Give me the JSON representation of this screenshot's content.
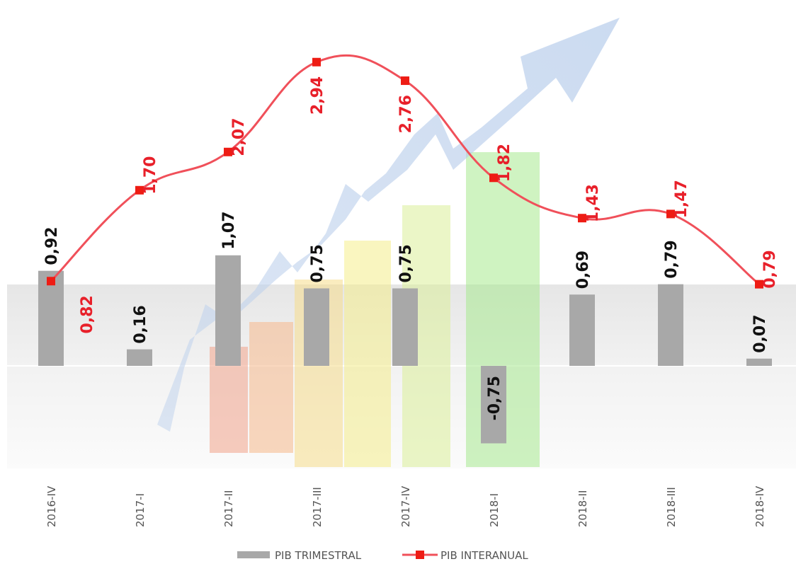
{
  "chart_data": {
    "type": "bar",
    "categories": [
      "2016-IV",
      "2017-I",
      "2017-II",
      "2017-III",
      "2017-IV",
      "2018-I",
      "2018-II",
      "2018-III",
      "2018-IV"
    ],
    "series": [
      {
        "name": "PIB TRIMESTRAL",
        "type": "bar",
        "values": [
          0.92,
          0.16,
          1.07,
          0.75,
          0.75,
          -0.75,
          0.69,
          0.79,
          0.07
        ],
        "labels": [
          "0,92",
          "0,16",
          "1,07",
          "0,75",
          "0,75",
          "-0,75",
          "0,69",
          "0,79",
          "0,07"
        ],
        "color": "#a8a8a8"
      },
      {
        "name": "PIB INTERANUAL",
        "type": "line",
        "values": [
          0.82,
          1.7,
          2.07,
          2.94,
          2.76,
          1.82,
          1.43,
          1.47,
          0.79
        ],
        "labels": [
          "0,82",
          "1,70",
          "2,07",
          "2,94",
          "2,76",
          "1,82",
          "1,43",
          "1,47",
          "0,79"
        ],
        "color": "#f0505a",
        "marker_color": "#ee1c14"
      }
    ],
    "legend": [
      "PIB TRIMESTRAL",
      "PIB INTERANUAL"
    ],
    "legend_position": "bottom",
    "grid": false
  }
}
